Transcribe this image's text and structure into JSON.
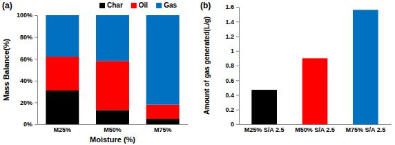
{
  "chart_data": [
    {
      "type": "bar",
      "title": "(a)",
      "stacked": true,
      "legend": "top",
      "grid": false,
      "x_label": "Moisture (%)",
      "y_label": "Mass Balance(%)",
      "categories": [
        "M25%",
        "M50%",
        "M75%"
      ],
      "series": [
        {
          "name": "Char",
          "color": "#000000",
          "values": [
            31,
            13,
            5
          ]
        },
        {
          "name": "Oil",
          "color": "#ff0000",
          "values": [
            31,
            45,
            13
          ]
        },
        {
          "name": "Gas",
          "color": "#0070c0",
          "values": [
            38,
            42,
            82
          ]
        }
      ],
      "ylim": [
        0,
        100
      ],
      "yticks": [
        {
          "value": 0,
          "label": "0%"
        },
        {
          "value": 20,
          "label": "20%"
        },
        {
          "value": 40,
          "label": "40%"
        },
        {
          "value": 60,
          "label": "60%"
        },
        {
          "value": 80,
          "label": "80%"
        },
        {
          "value": 100,
          "label": "100%"
        }
      ]
    },
    {
      "type": "bar",
      "title": "(b)",
      "grid": false,
      "y_label": "Amount of gas generated(L/g)",
      "categories": [
        "M25% S/A 2.5",
        "M50% S/A 2.5",
        "M75% S/A 2.5"
      ],
      "values": [
        0.47,
        0.9,
        1.56
      ],
      "colors": [
        "#000000",
        "#ff0000",
        "#0070c0"
      ],
      "ylim": [
        0,
        1.6
      ],
      "yticks": [
        0,
        0.2,
        0.4,
        0.6,
        0.8,
        1,
        1.2,
        1.4,
        1.6
      ]
    }
  ]
}
